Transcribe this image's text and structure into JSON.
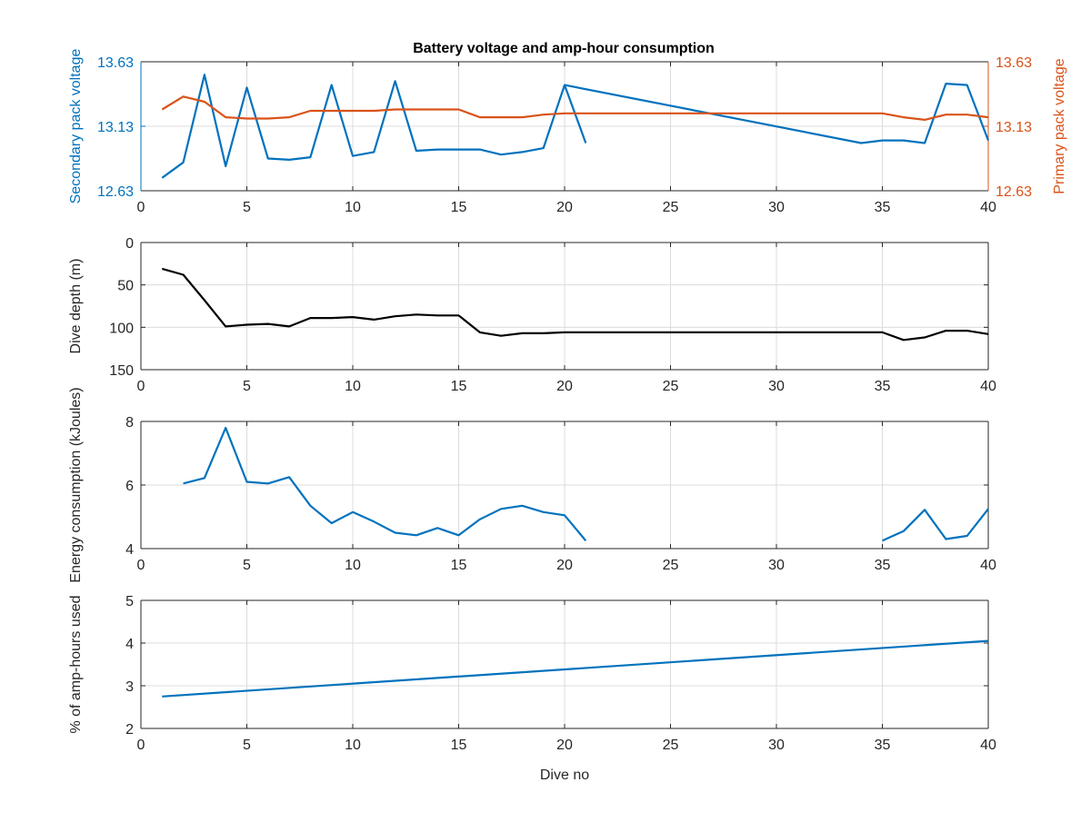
{
  "figure": {
    "title": "Battery voltage and amp-hour consumption"
  },
  "chart_data": [
    {
      "type": "line",
      "title": "Battery voltage and amp-hour consumption",
      "xlabel": "",
      "ylabel": "Secondary pack voltage",
      "ylabel_right": "Primary pack voltage",
      "xlim": [
        0,
        40
      ],
      "ylim": [
        12.63,
        13.63
      ],
      "ylim_right": [
        12.63,
        13.63
      ],
      "xticks": [
        "0",
        "5",
        "10",
        "15",
        "20",
        "25",
        "30",
        "35",
        "40"
      ],
      "yticks": [
        "12.63",
        "13.13",
        "13.63"
      ],
      "yticks_right": [
        "12.63",
        "13.13",
        "13.63"
      ],
      "grid": true,
      "colors": {
        "left_axis": "#0072BD",
        "right_axis": "#D95319"
      },
      "series": [
        {
          "axis": "left",
          "color": "#0072BD",
          "x": [
            1,
            2,
            3,
            4,
            5,
            6,
            7,
            8,
            9,
            10,
            11,
            12,
            13,
            14,
            15,
            16,
            17,
            18,
            19,
            20,
            21
          ],
          "y": [
            12.73,
            12.85,
            13.53,
            12.82,
            13.43,
            12.88,
            12.87,
            12.89,
            13.45,
            12.9,
            12.93,
            13.48,
            12.94,
            12.95,
            12.95,
            12.95,
            12.91,
            12.93,
            12.96,
            13.45,
            13.0
          ]
        },
        {
          "axis": "left",
          "color": "#0072BD",
          "x": [
            20,
            34,
            35,
            36,
            37,
            38,
            39,
            40
          ],
          "y": [
            13.45,
            13.0,
            13.02,
            13.02,
            13.0,
            13.46,
            13.45,
            13.02
          ]
        },
        {
          "axis": "right",
          "color": "#D95319",
          "x": [
            1,
            2,
            3,
            4,
            5,
            6,
            7,
            8,
            9,
            10,
            11,
            12,
            13,
            14,
            15,
            16,
            17,
            18,
            19,
            20,
            25,
            30,
            35,
            36,
            37,
            38,
            39,
            40
          ],
          "y": [
            13.26,
            13.36,
            13.32,
            13.2,
            13.19,
            13.19,
            13.2,
            13.25,
            13.25,
            13.25,
            13.25,
            13.26,
            13.26,
            13.26,
            13.26,
            13.2,
            13.2,
            13.2,
            13.22,
            13.23,
            13.23,
            13.23,
            13.23,
            13.2,
            13.18,
            13.22,
            13.22,
            13.2
          ]
        }
      ]
    },
    {
      "type": "line",
      "xlabel": "",
      "ylabel": "Dive depth (m)",
      "xlim": [
        0,
        40
      ],
      "ylim": [
        0,
        150
      ],
      "y_reversed": true,
      "xticks": [
        "0",
        "5",
        "10",
        "15",
        "20",
        "25",
        "30",
        "35",
        "40"
      ],
      "yticks": [
        "0",
        "50",
        "100",
        "150"
      ],
      "grid": true,
      "series": [
        {
          "color": "#000000",
          "x": [
            1,
            2,
            3,
            4,
            5,
            6,
            7,
            8,
            9,
            10,
            11,
            12,
            13,
            14,
            15,
            16,
            17,
            18,
            19,
            20,
            25,
            30,
            35,
            36,
            37,
            38,
            39,
            40
          ],
          "y": [
            31,
            38,
            68,
            99,
            97,
            96,
            99,
            89,
            89,
            88,
            91,
            87,
            85,
            86,
            86,
            106,
            110,
            107,
            107,
            106,
            106,
            106,
            106,
            115,
            112,
            104,
            104,
            108
          ]
        }
      ]
    },
    {
      "type": "line",
      "xlabel": "",
      "ylabel": "Energy consumption (kJoules)",
      "xlim": [
        0,
        40
      ],
      "ylim": [
        4,
        8
      ],
      "xticks": [
        "0",
        "5",
        "10",
        "15",
        "20",
        "25",
        "30",
        "35",
        "40"
      ],
      "yticks": [
        "4",
        "6",
        "8"
      ],
      "grid": true,
      "series": [
        {
          "color": "#0072BD",
          "x": [
            2,
            3,
            4,
            5,
            6,
            7,
            8,
            9,
            10,
            11,
            12,
            13,
            14,
            15,
            16,
            17,
            18,
            19,
            20,
            21
          ],
          "y": [
            6.05,
            6.22,
            7.8,
            6.1,
            6.05,
            6.25,
            5.35,
            4.8,
            5.15,
            4.85,
            4.5,
            4.42,
            4.65,
            4.42,
            4.92,
            5.25,
            5.35,
            5.15,
            5.05,
            4.25
          ]
        },
        {
          "color": "#0072BD",
          "x": [
            35,
            36,
            37,
            38,
            39,
            40
          ],
          "y": [
            4.25,
            4.55,
            5.22,
            4.3,
            4.4,
            5.25
          ]
        }
      ]
    },
    {
      "type": "line",
      "xlabel": "Dive no",
      "ylabel": "% of amp-hours used",
      "xlim": [
        0,
        40
      ],
      "ylim": [
        2,
        5
      ],
      "xticks": [
        "0",
        "5",
        "10",
        "15",
        "20",
        "25",
        "30",
        "35",
        "40"
      ],
      "yticks": [
        "2",
        "3",
        "4",
        "5"
      ],
      "grid": true,
      "series": [
        {
          "color": "#0072BD",
          "x": [
            1,
            40
          ],
          "y": [
            2.75,
            4.05
          ]
        }
      ]
    }
  ]
}
